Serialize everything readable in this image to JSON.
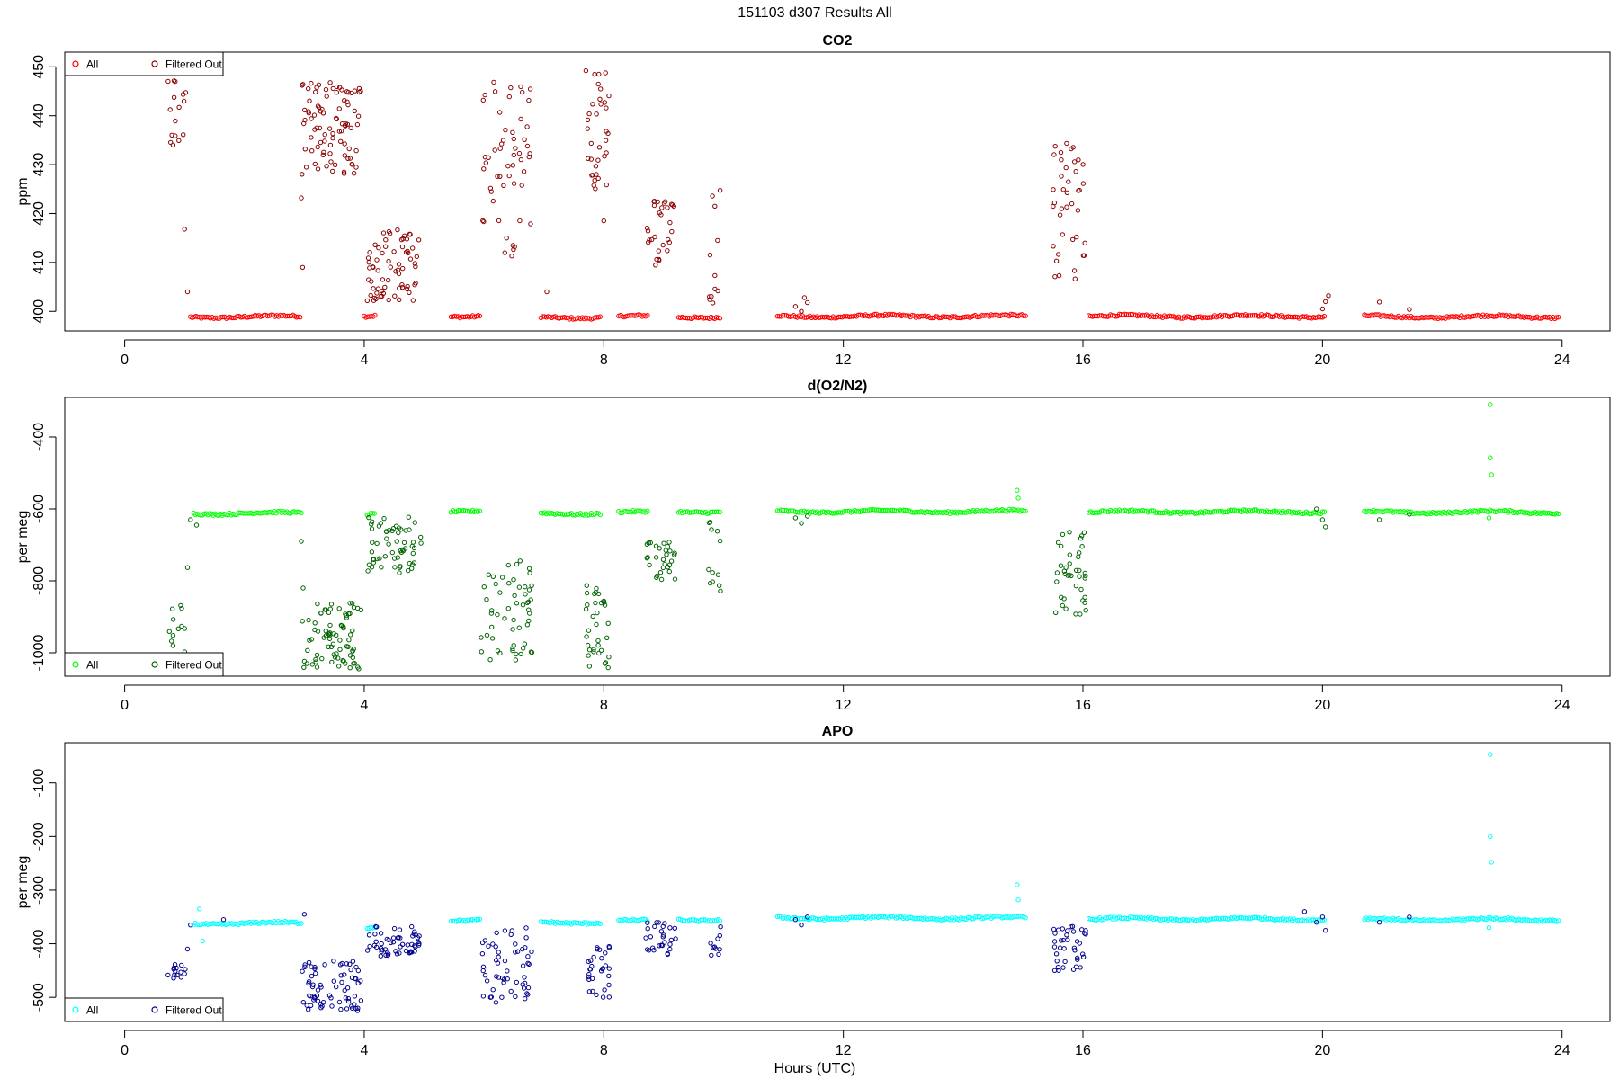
{
  "figure": {
    "title": "151103   d307   Results All",
    "xlabel": "Hours (UTC)"
  },
  "chart_data": [
    {
      "type": "scatter",
      "title": "CO2",
      "ylabel": "ppm",
      "xlim": [
        -1.0,
        24.8
      ],
      "ylim": [
        396.0,
        453.0
      ],
      "xticks": [
        0,
        4,
        8,
        12,
        16,
        20,
        24
      ],
      "yticks": [
        400,
        410,
        420,
        430,
        440,
        450
      ],
      "legend": {
        "position": "top-left",
        "entries": [
          "All",
          "Filtered Out"
        ]
      },
      "colors": {
        "all": "#ff0000",
        "filtered": "#8b0000"
      },
      "series": [
        {
          "name": "All",
          "segments": [
            {
              "x0": 1.1,
              "x1": 2.95,
              "y": 398.9
            },
            {
              "x0": 4.0,
              "x1": 4.2,
              "y": 399.0
            },
            {
              "x0": 5.45,
              "x1": 5.95,
              "y": 399.1
            },
            {
              "x0": 6.95,
              "x1": 7.95,
              "y": 398.8
            },
            {
              "x0": 8.25,
              "x1": 8.75,
              "y": 398.9
            },
            {
              "x0": 9.25,
              "x1": 9.95,
              "y": 398.9
            },
            {
              "x0": 10.9,
              "x1": 15.05,
              "y": 399.0
            },
            {
              "x0": 16.1,
              "x1": 20.05,
              "y": 399.0
            },
            {
              "x0": 20.7,
              "x1": 23.95,
              "y": 398.9
            }
          ]
        },
        {
          "name": "Filtered Out",
          "clusters": [
            {
              "x0": 0.72,
              "x1": 1.02,
              "y0": 431,
              "y1": 449,
              "n": 16
            },
            {
              "x0": 2.95,
              "x1": 3.95,
              "y0": 428,
              "y1": 447,
              "n": 90
            },
            {
              "x0": 4.05,
              "x1": 4.95,
              "y0": 402,
              "y1": 417,
              "n": 70
            },
            {
              "x0": 5.95,
              "x1": 6.8,
              "y0": 411,
              "y1": 447,
              "n": 55
            },
            {
              "x0": 7.7,
              "x1": 8.1,
              "y0": 425,
              "y1": 451,
              "n": 35
            },
            {
              "x0": 8.7,
              "x1": 9.2,
              "y0": 408,
              "y1": 423,
              "n": 30
            },
            {
              "x0": 9.75,
              "x1": 9.95,
              "y0": 401,
              "y1": 426,
              "n": 12
            },
            {
              "x0": 15.5,
              "x1": 16.05,
              "y0": 406,
              "y1": 436,
              "n": 40
            }
          ],
          "points": [
            [
              1.0,
              416.8
            ],
            [
              1.05,
              404.0
            ],
            [
              2.95,
              423.2
            ],
            [
              2.97,
              409.0
            ],
            [
              7.05,
              404.0
            ],
            [
              8.0,
              418.5
            ],
            [
              11.2,
              401.0
            ],
            [
              11.35,
              402.8
            ],
            [
              11.4,
              401.8
            ],
            [
              11.3,
              400.0
            ],
            [
              20.0,
              400.5
            ],
            [
              20.05,
              402.0
            ],
            [
              20.1,
              403.2
            ],
            [
              20.95,
              401.9
            ],
            [
              21.45,
              400.4
            ]
          ]
        }
      ]
    },
    {
      "type": "scatter",
      "title": "d(O2/N2)",
      "ylabel": "per meg",
      "xlim": [
        -1.0,
        24.8
      ],
      "ylim": [
        -1065,
        -290
      ],
      "xticks": [
        0,
        4,
        8,
        12,
        16,
        20,
        24
      ],
      "yticks": [
        -400,
        -600,
        -800,
        -1000
      ],
      "legend": {
        "position": "bottom-left",
        "entries": [
          "All",
          "Filtered Out"
        ]
      },
      "colors": {
        "all": "#00ff00",
        "filtered": "#006400"
      },
      "series": [
        {
          "name": "All",
          "segments": [
            {
              "x0": 1.15,
              "x1": 2.95,
              "y": -612
            },
            {
              "x0": 4.05,
              "x1": 4.2,
              "y": -615
            },
            {
              "x0": 5.45,
              "x1": 5.95,
              "y": -604
            },
            {
              "x0": 6.95,
              "x1": 7.95,
              "y": -612
            },
            {
              "x0": 8.25,
              "x1": 8.75,
              "y": -610
            },
            {
              "x0": 9.25,
              "x1": 9.95,
              "y": -607
            },
            {
              "x0": 10.9,
              "x1": 15.05,
              "y": -607
            },
            {
              "x0": 16.1,
              "x1": 20.05,
              "y": -608
            },
            {
              "x0": 20.7,
              "x1": 23.95,
              "y": -609
            }
          ],
          "points": [
            [
              14.9,
              -548
            ],
            [
              14.92,
              -570
            ],
            [
              22.8,
              -310
            ],
            [
              22.8,
              -458
            ],
            [
              22.82,
              -505
            ],
            [
              22.78,
              -625
            ]
          ]
        },
        {
          "name": "Filtered Out",
          "clusters": [
            {
              "x0": 0.72,
              "x1": 1.02,
              "y0": -1030,
              "y1": -865,
              "n": 16
            },
            {
              "x0": 2.95,
              "x1": 3.95,
              "y0": -1045,
              "y1": -860,
              "n": 80
            },
            {
              "x0": 4.05,
              "x1": 4.95,
              "y0": -780,
              "y1": -620,
              "n": 60
            },
            {
              "x0": 5.95,
              "x1": 6.8,
              "y0": -1020,
              "y1": -740,
              "n": 55
            },
            {
              "x0": 7.7,
              "x1": 8.1,
              "y0": -1045,
              "y1": -810,
              "n": 35
            },
            {
              "x0": 8.7,
              "x1": 9.2,
              "y0": -805,
              "y1": -690,
              "n": 30
            },
            {
              "x0": 9.75,
              "x1": 9.95,
              "y0": -830,
              "y1": -630,
              "n": 12
            },
            {
              "x0": 15.5,
              "x1": 16.05,
              "y0": -910,
              "y1": -660,
              "n": 40
            }
          ],
          "points": [
            [
              1.05,
              -763
            ],
            [
              1.1,
              -630
            ],
            [
              1.2,
              -645
            ],
            [
              2.95,
              -690
            ],
            [
              2.98,
              -820
            ],
            [
              11.2,
              -625
            ],
            [
              11.3,
              -640
            ],
            [
              11.4,
              -620
            ],
            [
              19.9,
              -600
            ],
            [
              20.0,
              -630
            ],
            [
              20.05,
              -650
            ],
            [
              20.95,
              -630
            ],
            [
              21.45,
              -615
            ]
          ]
        }
      ]
    },
    {
      "type": "scatter",
      "title": "APO",
      "ylabel": "per meg",
      "xlim": [
        -1.0,
        24.8
      ],
      "ylim": [
        -545,
        -25
      ],
      "xticks": [
        0,
        4,
        8,
        12,
        16,
        20,
        24
      ],
      "yticks": [
        -100,
        -200,
        -300,
        -400,
        -500
      ],
      "legend": {
        "position": "bottom-left",
        "entries": [
          "All",
          "Filtered Out"
        ]
      },
      "colors": {
        "all": "#00ffff",
        "filtered": "#00008b"
      },
      "series": [
        {
          "name": "All",
          "segments": [
            {
              "x0": 1.15,
              "x1": 2.95,
              "y": -362
            },
            {
              "x0": 4.05,
              "x1": 4.2,
              "y": -370
            },
            {
              "x0": 5.45,
              "x1": 5.95,
              "y": -355
            },
            {
              "x0": 6.95,
              "x1": 7.95,
              "y": -360
            },
            {
              "x0": 8.25,
              "x1": 8.75,
              "y": -358
            },
            {
              "x0": 9.25,
              "x1": 9.95,
              "y": -355
            },
            {
              "x0": 10.9,
              "x1": 15.05,
              "y": -352
            },
            {
              "x0": 16.1,
              "x1": 20.05,
              "y": -354
            },
            {
              "x0": 20.7,
              "x1": 23.95,
              "y": -355
            }
          ],
          "points": [
            [
              1.25,
              -335
            ],
            [
              1.3,
              -395
            ],
            [
              14.9,
              -290
            ],
            [
              14.92,
              -318
            ],
            [
              22.8,
              -47
            ],
            [
              22.8,
              -200
            ],
            [
              22.82,
              -248
            ],
            [
              22.78,
              -370
            ]
          ]
        },
        {
          "name": "Filtered Out",
          "clusters": [
            {
              "x0": 0.72,
              "x1": 1.02,
              "y0": -475,
              "y1": -438,
              "n": 14
            },
            {
              "x0": 2.95,
              "x1": 3.95,
              "y0": -525,
              "y1": -430,
              "n": 70
            },
            {
              "x0": 4.05,
              "x1": 4.95,
              "y0": -425,
              "y1": -365,
              "n": 55
            },
            {
              "x0": 5.95,
              "x1": 6.8,
              "y0": -510,
              "y1": -370,
              "n": 55
            },
            {
              "x0": 7.7,
              "x1": 8.1,
              "y0": -510,
              "y1": -400,
              "n": 30
            },
            {
              "x0": 8.7,
              "x1": 9.2,
              "y0": -420,
              "y1": -360,
              "n": 28
            },
            {
              "x0": 9.75,
              "x1": 9.95,
              "y0": -425,
              "y1": -360,
              "n": 10
            },
            {
              "x0": 15.5,
              "x1": 16.05,
              "y0": -455,
              "y1": -365,
              "n": 38
            }
          ],
          "points": [
            [
              1.05,
              -410
            ],
            [
              1.1,
              -365
            ],
            [
              1.65,
              -355
            ],
            [
              3.0,
              -345
            ],
            [
              11.2,
              -355
            ],
            [
              11.3,
              -365
            ],
            [
              11.4,
              -350
            ],
            [
              19.7,
              -340
            ],
            [
              19.9,
              -360
            ],
            [
              20.0,
              -350
            ],
            [
              20.05,
              -375
            ],
            [
              20.95,
              -360
            ],
            [
              21.45,
              -350
            ]
          ]
        }
      ]
    }
  ]
}
